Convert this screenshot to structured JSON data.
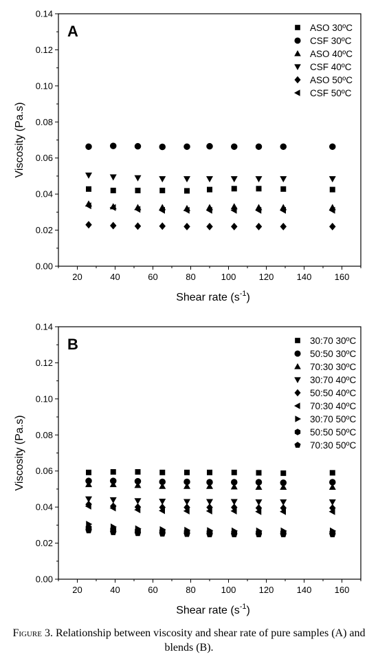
{
  "chart_data": [
    {
      "type": "scatter",
      "panel_label": "A",
      "xlabel": "Shear rate (s",
      "xlabel_sup": "-1",
      "xlabel_close": ")",
      "ylabel": "Viscosity (Pa.s)",
      "xlim": [
        10,
        170
      ],
      "ylim": [
        0,
        0.14
      ],
      "xticks": [
        20,
        40,
        60,
        80,
        100,
        120,
        140,
        160
      ],
      "yticks": [
        0.0,
        0.02,
        0.04,
        0.06,
        0.08,
        0.1,
        0.12,
        0.14
      ],
      "grid": false,
      "legend_position": "top-right",
      "x": [
        26,
        39,
        52,
        65,
        78,
        90,
        103,
        116,
        129,
        155
      ],
      "series": [
        {
          "name": "ASO 30ºC",
          "marker": "square",
          "values": [
            0.0428,
            0.042,
            0.042,
            0.042,
            0.0418,
            0.0425,
            0.043,
            0.043,
            0.0428,
            0.0425
          ]
        },
        {
          "name": "CSF 30ºC",
          "marker": "circle",
          "values": [
            0.0663,
            0.0667,
            0.0665,
            0.0662,
            0.0663,
            0.0665,
            0.0663,
            0.0663,
            0.0663,
            0.0663
          ]
        },
        {
          "name": "ASO 40ºC",
          "marker": "triangle-up",
          "values": [
            0.0345,
            0.033,
            0.0325,
            0.0325,
            0.032,
            0.0325,
            0.033,
            0.0325,
            0.0325,
            0.0325
          ]
        },
        {
          "name": "CSF 40ºC",
          "marker": "triangle-down",
          "values": [
            0.0505,
            0.0495,
            0.049,
            0.0485,
            0.0485,
            0.0485,
            0.0485,
            0.0485,
            0.0485,
            0.0485
          ]
        },
        {
          "name": "ASO 50ºC",
          "marker": "diamond",
          "values": [
            0.023,
            0.0225,
            0.0222,
            0.0222,
            0.022,
            0.022,
            0.022,
            0.022,
            0.022,
            0.022
          ]
        },
        {
          "name": "CSF 50ºC",
          "marker": "triangle-left",
          "values": [
            0.0335,
            0.0325,
            0.0315,
            0.031,
            0.031,
            0.031,
            0.031,
            0.031,
            0.031,
            0.031
          ]
        }
      ]
    },
    {
      "type": "scatter",
      "panel_label": "B",
      "xlabel": "Shear rate (s",
      "xlabel_sup": "-1",
      "xlabel_close": ")",
      "ylabel": "Viscosity (Pa.s)",
      "xlim": [
        10,
        170
      ],
      "ylim": [
        0,
        0.14
      ],
      "xticks": [
        20,
        40,
        60,
        80,
        100,
        120,
        140,
        160
      ],
      "yticks": [
        0.0,
        0.02,
        0.04,
        0.06,
        0.08,
        0.1,
        0.12,
        0.14
      ],
      "grid": false,
      "legend_position": "top-right",
      "x": [
        26,
        39,
        52,
        65,
        78,
        90,
        103,
        116,
        129,
        155
      ],
      "series": [
        {
          "name": "30:70 30ºC",
          "marker": "square",
          "values": [
            0.0592,
            0.0595,
            0.0595,
            0.0592,
            0.0592,
            0.0592,
            0.0592,
            0.059,
            0.0588,
            0.059
          ]
        },
        {
          "name": "50:50 30ºC",
          "marker": "circle",
          "values": [
            0.0545,
            0.0545,
            0.0543,
            0.054,
            0.054,
            0.0538,
            0.0538,
            0.0538,
            0.0535,
            0.0538
          ]
        },
        {
          "name": "70:30 30ºC",
          "marker": "triangle-up",
          "values": [
            0.0525,
            0.0525,
            0.052,
            0.0515,
            0.0515,
            0.0515,
            0.0512,
            0.051,
            0.051,
            0.051
          ]
        },
        {
          "name": "30:70 40ºC",
          "marker": "triangle-down",
          "values": [
            0.0445,
            0.044,
            0.0435,
            0.0432,
            0.043,
            0.043,
            0.043,
            0.0428,
            0.0428,
            0.0428
          ]
        },
        {
          "name": "50:50 40ºC",
          "marker": "diamond",
          "values": [
            0.0415,
            0.0405,
            0.04,
            0.0398,
            0.0398,
            0.0398,
            0.0398,
            0.0395,
            0.0395,
            0.0395
          ]
        },
        {
          "name": "70:30 40ºC",
          "marker": "triangle-left",
          "values": [
            0.0405,
            0.0395,
            0.0385,
            0.038,
            0.0378,
            0.0378,
            0.0378,
            0.0375,
            0.0375,
            0.0375
          ]
        },
        {
          "name": "30:70 50ºC",
          "marker": "triangle-right",
          "values": [
            0.0305,
            0.029,
            0.028,
            0.0275,
            0.0272,
            0.027,
            0.0268,
            0.0268,
            0.0268,
            0.0268
          ]
        },
        {
          "name": "50:50 50ºC",
          "marker": "hexagon",
          "values": [
            0.0285,
            0.0275,
            0.0268,
            0.0265,
            0.0262,
            0.026,
            0.0258,
            0.0258,
            0.0258,
            0.0258
          ]
        },
        {
          "name": "70:30 50ºC",
          "marker": "pentagon",
          "values": [
            0.027,
            0.026,
            0.0255,
            0.0252,
            0.025,
            0.0248,
            0.0248,
            0.0248,
            0.0248,
            0.0248
          ]
        }
      ]
    }
  ],
  "caption": {
    "lead": "Figure 3.",
    "text": " Relationship between viscosity and shear rate of pure samples (A) and blends (B)."
  }
}
